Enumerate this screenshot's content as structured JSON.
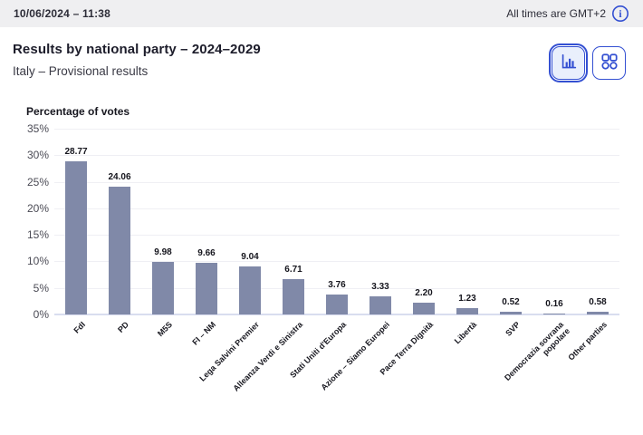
{
  "topbar": {
    "datetime": "10/06/2024 – 11:38",
    "timezone_note": "All times are GMT+2",
    "info_icon": "info-circle-icon"
  },
  "header": {
    "title": "Results by national party – 2024–2029",
    "subtitle": "Italy – Provisional results"
  },
  "view_toggle": {
    "chart_view": {
      "icon": "bar-chart-icon",
      "selected": true
    },
    "grid_view": {
      "icon": "grid-view-icon",
      "selected": false
    }
  },
  "chart_data": {
    "type": "bar",
    "title": "Percentage of votes",
    "categories": [
      "FdI",
      "PD",
      "M5S",
      "FI – NM",
      "Lega Salvini Premier",
      "Alleanza Verdi e Sinistra",
      "Stati Uniti d'Europa",
      "Azione – Siamo Europei",
      "Pace Terra Dignità",
      "Libertà",
      "SVP",
      "Democrazia sovrana popolare",
      "Other parties"
    ],
    "values": [
      28.77,
      24.06,
      9.98,
      9.66,
      9.04,
      6.71,
      3.76,
      3.33,
      2.2,
      1.23,
      0.52,
      0.16,
      0.58
    ],
    "value_labels": [
      "28.77",
      "24.06",
      "9.98",
      "9.66",
      "9.04",
      "6.71",
      "3.76",
      "3.33",
      "2.20",
      "1.23",
      "0.52",
      "0.16",
      "0.58"
    ],
    "ylabel": "Percentage of votes",
    "xlabel": "",
    "ylim": [
      0,
      35
    ],
    "yticks": [
      35,
      30,
      25,
      20,
      15,
      10,
      5,
      0
    ],
    "ytick_labels": [
      "35%",
      "30%",
      "25%",
      "20%",
      "15%",
      "10%",
      "5%",
      "0%"
    ],
    "grid": true,
    "legend": false,
    "bar_color": "#8089a8"
  },
  "colors": {
    "accent_blue": "#3450d2",
    "bar": "#8089a8",
    "topbar_bg": "#efeff1",
    "gridline": "#efeff4",
    "baseline": "#d9ddef",
    "selected_button_bg": "#e9effc"
  }
}
